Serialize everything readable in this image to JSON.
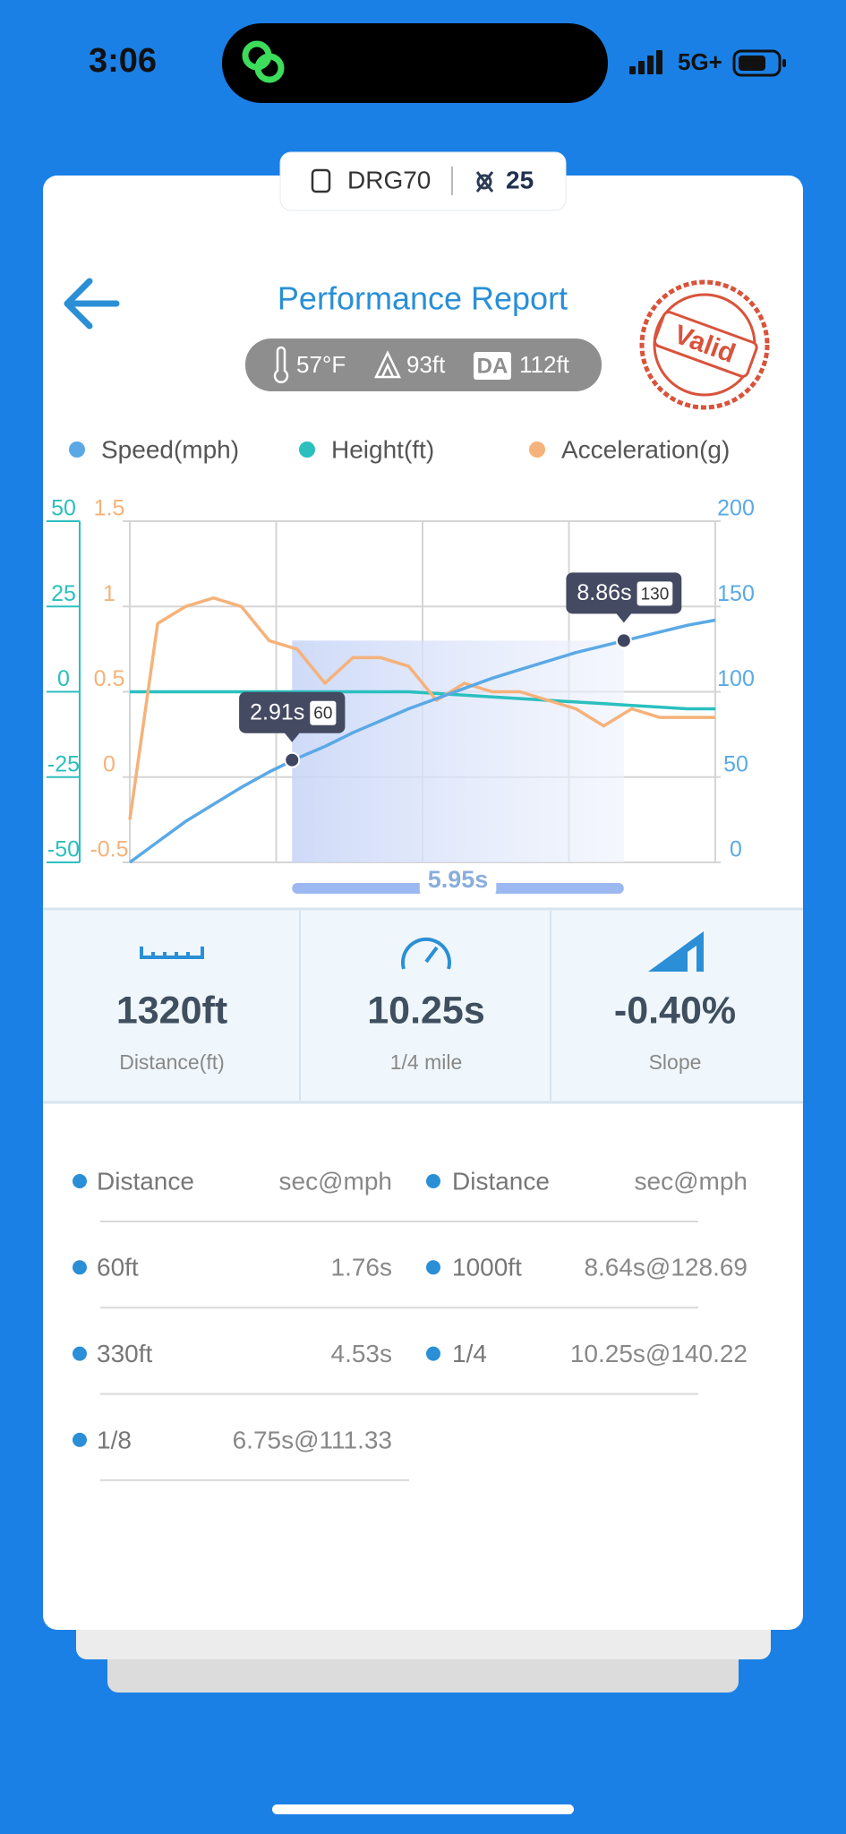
{
  "status": {
    "time": "3:06",
    "network": "5G+"
  },
  "device": {
    "name": "DRG70",
    "count": "25"
  },
  "header": {
    "title": "Performance Report",
    "stamp": "Valid"
  },
  "conditions": {
    "temperature": "57°F",
    "altitude": "93ft",
    "da_badge": "DA",
    "density_altitude": "112ft"
  },
  "chart_data": {
    "type": "line",
    "x": [
      0,
      0.5,
      1,
      1.5,
      2,
      2.5,
      3,
      3.5,
      4,
      4.5,
      5,
      5.5,
      6,
      6.5,
      7,
      7.5,
      8,
      8.5,
      9,
      9.5,
      10,
      10.5
    ],
    "xlim": [
      0,
      10.5
    ],
    "series": [
      {
        "name": "Speed(mph)",
        "color": "#5aa9e6",
        "axis": "y2",
        "values": [
          0,
          12,
          24,
          34,
          44,
          53,
          61,
          68,
          76,
          83,
          90,
          96,
          102,
          108,
          113,
          118,
          123,
          127,
          131,
          135,
          139,
          142
        ]
      },
      {
        "name": "Height(ft)",
        "color": "#2bbfbf",
        "axis": "y",
        "values": [
          0,
          0,
          0,
          0,
          0,
          0,
          0,
          0,
          0,
          0,
          0,
          -0.5,
          -1,
          -1.5,
          -2,
          -2.5,
          -3,
          -3.5,
          -4,
          -4.5,
          -5,
          -5
        ]
      },
      {
        "name": "Acceleration(g)",
        "color": "#f5b27a",
        "axis": "y3",
        "values": [
          -0.25,
          0.9,
          1.0,
          1.05,
          1.0,
          0.8,
          0.75,
          0.55,
          0.7,
          0.7,
          0.65,
          0.45,
          0.55,
          0.5,
          0.5,
          0.45,
          0.4,
          0.3,
          0.4,
          0.35,
          0.35,
          0.35
        ]
      }
    ],
    "ylim": [
      -50,
      50
    ],
    "yticks": [
      50,
      25,
      0,
      -25,
      -50
    ],
    "y2lim": [
      0,
      200
    ],
    "y2ticks": [
      200,
      150,
      100,
      50,
      0
    ],
    "y3lim": [
      -0.5,
      1.5
    ],
    "y3ticks": [
      1.5,
      1,
      0.5,
      0,
      -0.5
    ],
    "grid": true,
    "annotations": [
      {
        "x": 2.91,
        "y": 60,
        "label": "2.91s",
        "value_label": "60"
      },
      {
        "x": 8.86,
        "y": 130,
        "label": "8.86s",
        "value_label": "130"
      }
    ],
    "range": {
      "from": 2.91,
      "to": 8.86,
      "label": "5.95s"
    }
  },
  "stats": [
    {
      "value": "1320ft",
      "label": "Distance(ft)"
    },
    {
      "value": "10.25s",
      "label": "1/4 mile"
    },
    {
      "value": "-0.40%",
      "label": "Slope"
    }
  ],
  "table": {
    "rows": [
      [
        {
          "name": "Distance",
          "value": "sec@mph"
        },
        {
          "name": "Distance",
          "value": "sec@mph"
        }
      ],
      [
        {
          "name": "60ft",
          "value": "1.76s"
        },
        {
          "name": "1000ft",
          "value": "8.64s@128.69"
        }
      ],
      [
        {
          "name": "330ft",
          "value": "4.53s"
        },
        {
          "name": "1/4",
          "value": "10.25s@140.22"
        }
      ],
      [
        {
          "name": "1/8",
          "value": "6.75s@111.33"
        }
      ]
    ]
  }
}
